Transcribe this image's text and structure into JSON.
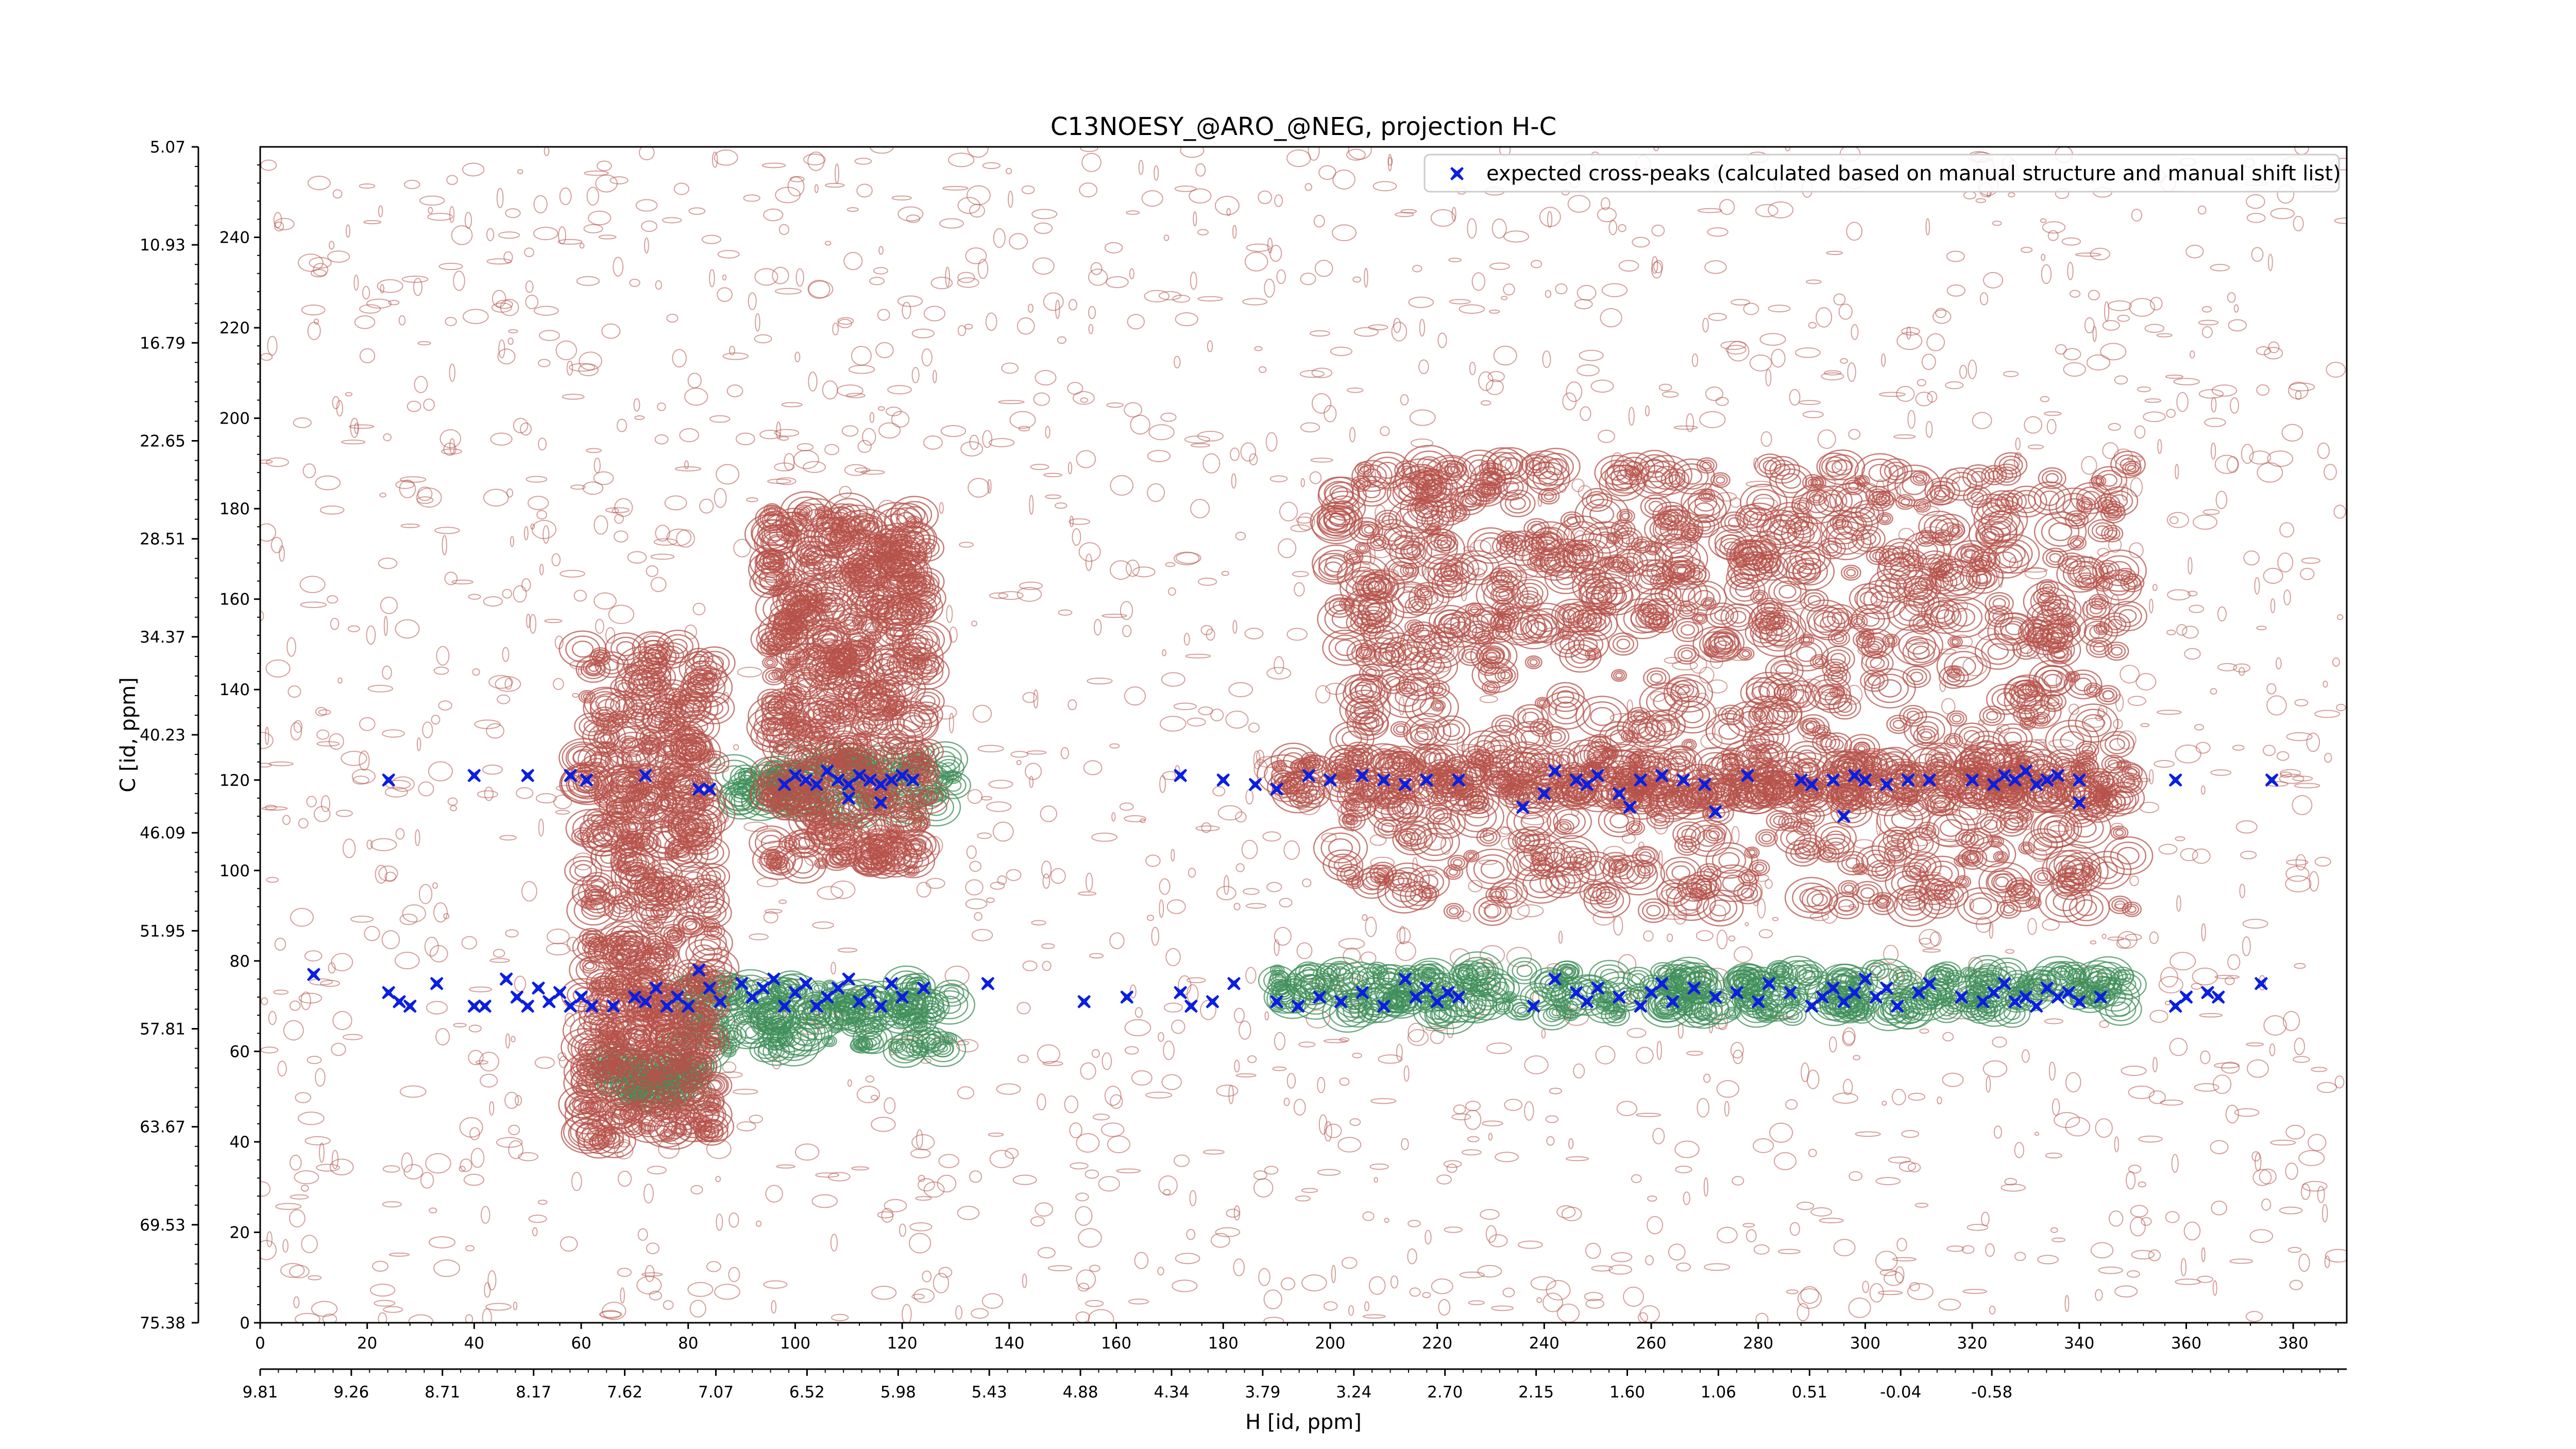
{
  "chart_data": {
    "type": "scatter",
    "title": "C13NOESY_@ARO_@NEG, projection H-C",
    "xlabel": "H [id, ppm]",
    "ylabel": "C [id, ppm]",
    "xlim": [
      0,
      390
    ],
    "ylim": [
      0,
      260
    ],
    "x_ticks_index": [
      "0",
      "20",
      "40",
      "60",
      "80",
      "100",
      "120",
      "140",
      "160",
      "180",
      "200",
      "220",
      "240",
      "260",
      "280",
      "300",
      "320",
      "340",
      "360",
      "380"
    ],
    "x_ticks_ppm": [
      "9.81",
      "9.26",
      "8.71",
      "8.17",
      "7.62",
      "7.07",
      "6.52",
      "5.98",
      "5.43",
      "4.88",
      "4.34",
      "3.79",
      "3.24",
      "2.70",
      "2.15",
      "1.60",
      "1.06",
      "0.51",
      "-0.04",
      "-0.58"
    ],
    "y_ticks_index": [
      "0",
      "20",
      "40",
      "60",
      "80",
      "100",
      "120",
      "140",
      "160",
      "180",
      "200",
      "220",
      "240"
    ],
    "y_ticks_ppm": [
      "75.38",
      "69.53",
      "63.67",
      "57.81",
      "51.95",
      "46.09",
      "40.23",
      "34.37",
      "28.51",
      "22.65",
      "16.79",
      "10.93",
      "5.07"
    ],
    "legend": {
      "position": "top-right",
      "entries": [
        "expected cross-peaks (calculated based on manual structure and manual shift list)"
      ]
    },
    "colors": {
      "negative_contours": "#b5524a",
      "positive_contours": "#3f8f5a",
      "expected_peaks": "#0a1fe0"
    },
    "contour_bands": [
      {
        "x": [
          88,
          130
        ],
        "y": [
          113,
          125
        ],
        "sign": "positive"
      },
      {
        "x": [
          78,
          130
        ],
        "y": [
          60,
          75
        ],
        "sign": "positive"
      },
      {
        "x": [
          65,
          82
        ],
        "y": [
          50,
          58
        ],
        "sign": "positive"
      },
      {
        "x": [
          190,
          350
        ],
        "y": [
          68,
          78
        ],
        "sign": "positive"
      },
      {
        "x": [
          190,
          350
        ],
        "y": [
          115,
          125
        ],
        "sign": "negative"
      },
      {
        "x": [
          60,
          85
        ],
        "y": [
          40,
          150
        ],
        "sign": "negative"
      },
      {
        "x": [
          95,
          125
        ],
        "y": [
          100,
          180
        ],
        "sign": "negative"
      },
      {
        "x": [
          200,
          350
        ],
        "y": [
          90,
          150
        ],
        "sign": "negative"
      },
      {
        "x": [
          200,
          350
        ],
        "y": [
          150,
          190
        ],
        "sign": "negative"
      }
    ],
    "series": [
      {
        "name": "expected cross-peaks (calculated based on manual structure and manual shift list)",
        "points": [
          [
            10,
            77
          ],
          [
            24,
            73
          ],
          [
            26,
            71
          ],
          [
            28,
            70
          ],
          [
            33,
            75
          ],
          [
            40,
            70
          ],
          [
            42,
            70
          ],
          [
            46,
            76
          ],
          [
            48,
            72
          ],
          [
            50,
            70
          ],
          [
            52,
            74
          ],
          [
            54,
            71
          ],
          [
            56,
            73
          ],
          [
            58,
            70
          ],
          [
            60,
            72
          ],
          [
            62,
            70
          ],
          [
            66,
            70
          ],
          [
            70,
            72
          ],
          [
            72,
            71
          ],
          [
            74,
            74
          ],
          [
            76,
            70
          ],
          [
            78,
            72
          ],
          [
            80,
            70
          ],
          [
            82,
            78
          ],
          [
            84,
            74
          ],
          [
            86,
            71
          ],
          [
            90,
            75
          ],
          [
            92,
            72
          ],
          [
            94,
            74
          ],
          [
            96,
            76
          ],
          [
            98,
            70
          ],
          [
            100,
            73
          ],
          [
            102,
            75
          ],
          [
            104,
            70
          ],
          [
            106,
            72
          ],
          [
            108,
            74
          ],
          [
            110,
            76
          ],
          [
            112,
            71
          ],
          [
            114,
            73
          ],
          [
            116,
            70
          ],
          [
            118,
            75
          ],
          [
            120,
            72
          ],
          [
            124,
            74
          ],
          [
            136,
            75
          ],
          [
            154,
            71
          ],
          [
            162,
            72
          ],
          [
            172,
            73
          ],
          [
            174,
            70
          ],
          [
            178,
            71
          ],
          [
            182,
            75
          ],
          [
            190,
            71
          ],
          [
            194,
            70
          ],
          [
            198,
            72
          ],
          [
            202,
            71
          ],
          [
            206,
            73
          ],
          [
            210,
            70
          ],
          [
            214,
            76
          ],
          [
            216,
            72
          ],
          [
            218,
            74
          ],
          [
            220,
            71
          ],
          [
            222,
            73
          ],
          [
            224,
            72
          ],
          [
            238,
            70
          ],
          [
            242,
            76
          ],
          [
            246,
            73
          ],
          [
            248,
            71
          ],
          [
            250,
            74
          ],
          [
            254,
            72
          ],
          [
            258,
            70
          ],
          [
            260,
            73
          ],
          [
            262,
            75
          ],
          [
            264,
            71
          ],
          [
            268,
            74
          ],
          [
            272,
            72
          ],
          [
            276,
            73
          ],
          [
            280,
            71
          ],
          [
            282,
            75
          ],
          [
            286,
            73
          ],
          [
            290,
            70
          ],
          [
            292,
            72
          ],
          [
            294,
            74
          ],
          [
            296,
            71
          ],
          [
            298,
            73
          ],
          [
            300,
            76
          ],
          [
            302,
            72
          ],
          [
            304,
            74
          ],
          [
            306,
            70
          ],
          [
            310,
            73
          ],
          [
            312,
            75
          ],
          [
            318,
            72
          ],
          [
            322,
            71
          ],
          [
            324,
            73
          ],
          [
            326,
            75
          ],
          [
            328,
            71
          ],
          [
            330,
            72
          ],
          [
            332,
            70
          ],
          [
            334,
            74
          ],
          [
            336,
            72
          ],
          [
            338,
            73
          ],
          [
            340,
            71
          ],
          [
            344,
            72
          ],
          [
            358,
            70
          ],
          [
            360,
            72
          ],
          [
            364,
            73
          ],
          [
            366,
            72
          ],
          [
            374,
            75
          ],
          [
            24,
            120
          ],
          [
            40,
            121
          ],
          [
            50,
            121
          ],
          [
            58,
            121
          ],
          [
            61,
            120
          ],
          [
            72,
            121
          ],
          [
            82,
            118
          ],
          [
            84,
            118
          ],
          [
            98,
            119
          ],
          [
            100,
            121
          ],
          [
            102,
            120
          ],
          [
            104,
            119
          ],
          [
            106,
            122
          ],
          [
            108,
            120
          ],
          [
            110,
            119
          ],
          [
            112,
            121
          ],
          [
            114,
            120
          ],
          [
            116,
            119
          ],
          [
            118,
            120
          ],
          [
            120,
            121
          ],
          [
            122,
            120
          ],
          [
            110,
            116
          ],
          [
            116,
            115
          ],
          [
            172,
            121
          ],
          [
            180,
            120
          ],
          [
            186,
            119
          ],
          [
            190,
            118
          ],
          [
            196,
            121
          ],
          [
            200,
            120
          ],
          [
            206,
            121
          ],
          [
            210,
            120
          ],
          [
            214,
            119
          ],
          [
            218,
            120
          ],
          [
            224,
            120
          ],
          [
            240,
            117
          ],
          [
            242,
            122
          ],
          [
            246,
            120
          ],
          [
            248,
            119
          ],
          [
            250,
            121
          ],
          [
            254,
            117
          ],
          [
            256,
            114
          ],
          [
            258,
            120
          ],
          [
            262,
            121
          ],
          [
            266,
            120
          ],
          [
            270,
            119
          ],
          [
            278,
            121
          ],
          [
            288,
            120
          ],
          [
            290,
            119
          ],
          [
            294,
            120
          ],
          [
            298,
            121
          ],
          [
            300,
            120
          ],
          [
            304,
            119
          ],
          [
            308,
            120
          ],
          [
            312,
            120
          ],
          [
            320,
            120
          ],
          [
            324,
            119
          ],
          [
            326,
            121
          ],
          [
            328,
            120
          ],
          [
            330,
            122
          ],
          [
            332,
            119
          ],
          [
            334,
            120
          ],
          [
            336,
            121
          ],
          [
            340,
            120
          ],
          [
            358,
            120
          ],
          [
            376,
            120
          ],
          [
            236,
            114
          ],
          [
            272,
            113
          ],
          [
            296,
            112
          ],
          [
            340,
            115
          ]
        ]
      }
    ]
  }
}
